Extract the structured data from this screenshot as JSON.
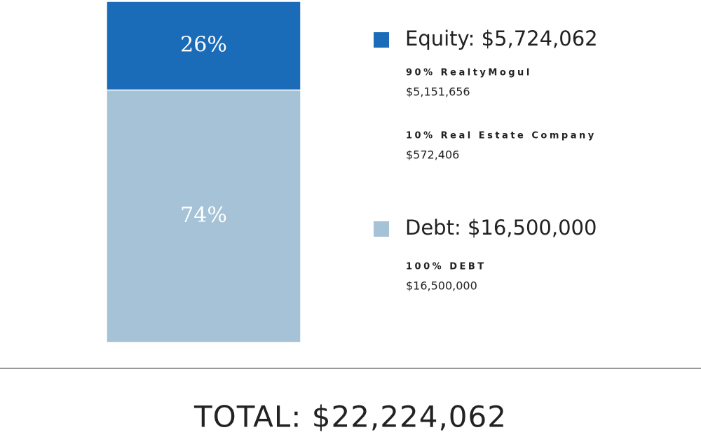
{
  "chart_data": {
    "type": "stacked_bar",
    "series": [
      {
        "name": "Equity: $5,724,062",
        "color": "#1a6bb8",
        "values": [
          26
        ],
        "value_labels": [
          "26%"
        ],
        "breakdown": [
          {
            "label": "90% RealtyMogul",
            "amount": "$5,151,656"
          },
          {
            "label": "10% Real Estate Company",
            "amount": "$572,406"
          }
        ]
      },
      {
        "name": "Debt: $16,500,000",
        "color": "#a5c2d7",
        "values": [
          74
        ],
        "value_labels": [
          "74%"
        ],
        "breakdown": [
          {
            "label": "100% DEBT",
            "amount": "$16,500,000"
          }
        ]
      }
    ],
    "total": "TOTAL: $22,224,062"
  }
}
